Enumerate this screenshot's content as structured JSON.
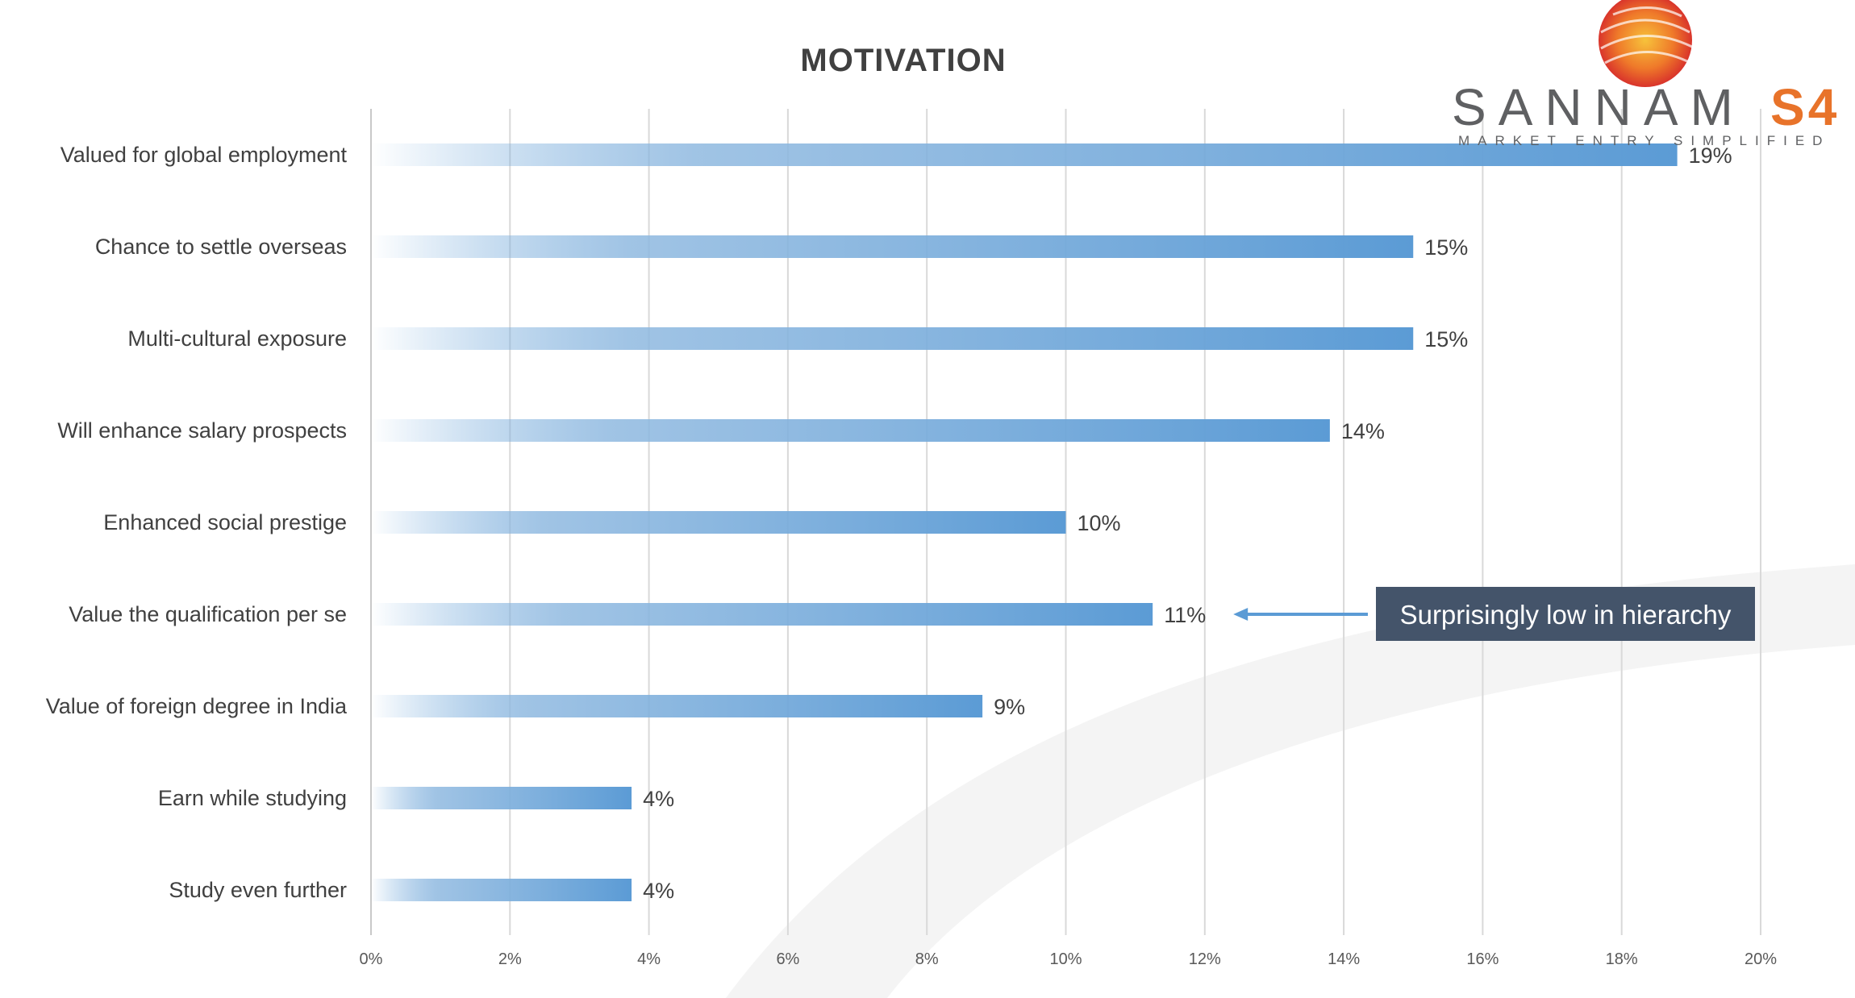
{
  "chart_data": {
    "type": "bar",
    "orientation": "horizontal",
    "title": "MOTIVATION",
    "categories": [
      "Valued for global employment",
      "Chance to settle overseas",
      "Multi-cultural exposure",
      "Will enhance salary prospects",
      "Enhanced social prestige",
      "Value the qualification per se",
      "Value of foreign degree in India",
      "Earn while studying",
      "Study even further"
    ],
    "values": [
      18.8,
      15,
      15,
      13.8,
      10,
      11.25,
      8.8,
      3.75,
      3.75
    ],
    "value_labels": [
      "19%",
      "15%",
      "15%",
      "14%",
      "10%",
      "11%",
      "9%",
      "4%",
      "4%"
    ],
    "xlim": [
      0,
      20
    ],
    "x_ticks": [
      "0%",
      "2%",
      "4%",
      "6%",
      "8%",
      "10%",
      "12%",
      "14%",
      "16%",
      "18%",
      "20%"
    ],
    "grid": true,
    "bar_color": "#5b9bd5",
    "annotation": {
      "text": "Surprisingly low in hierarchy",
      "target_category_index": 5,
      "box_color": "#44546a"
    }
  },
  "logo": {
    "name": "SANNAM",
    "suffix": "S4",
    "tagline": "MARKET ENTRY SIMPLIFIED",
    "accent_color": "#e8732a"
  }
}
